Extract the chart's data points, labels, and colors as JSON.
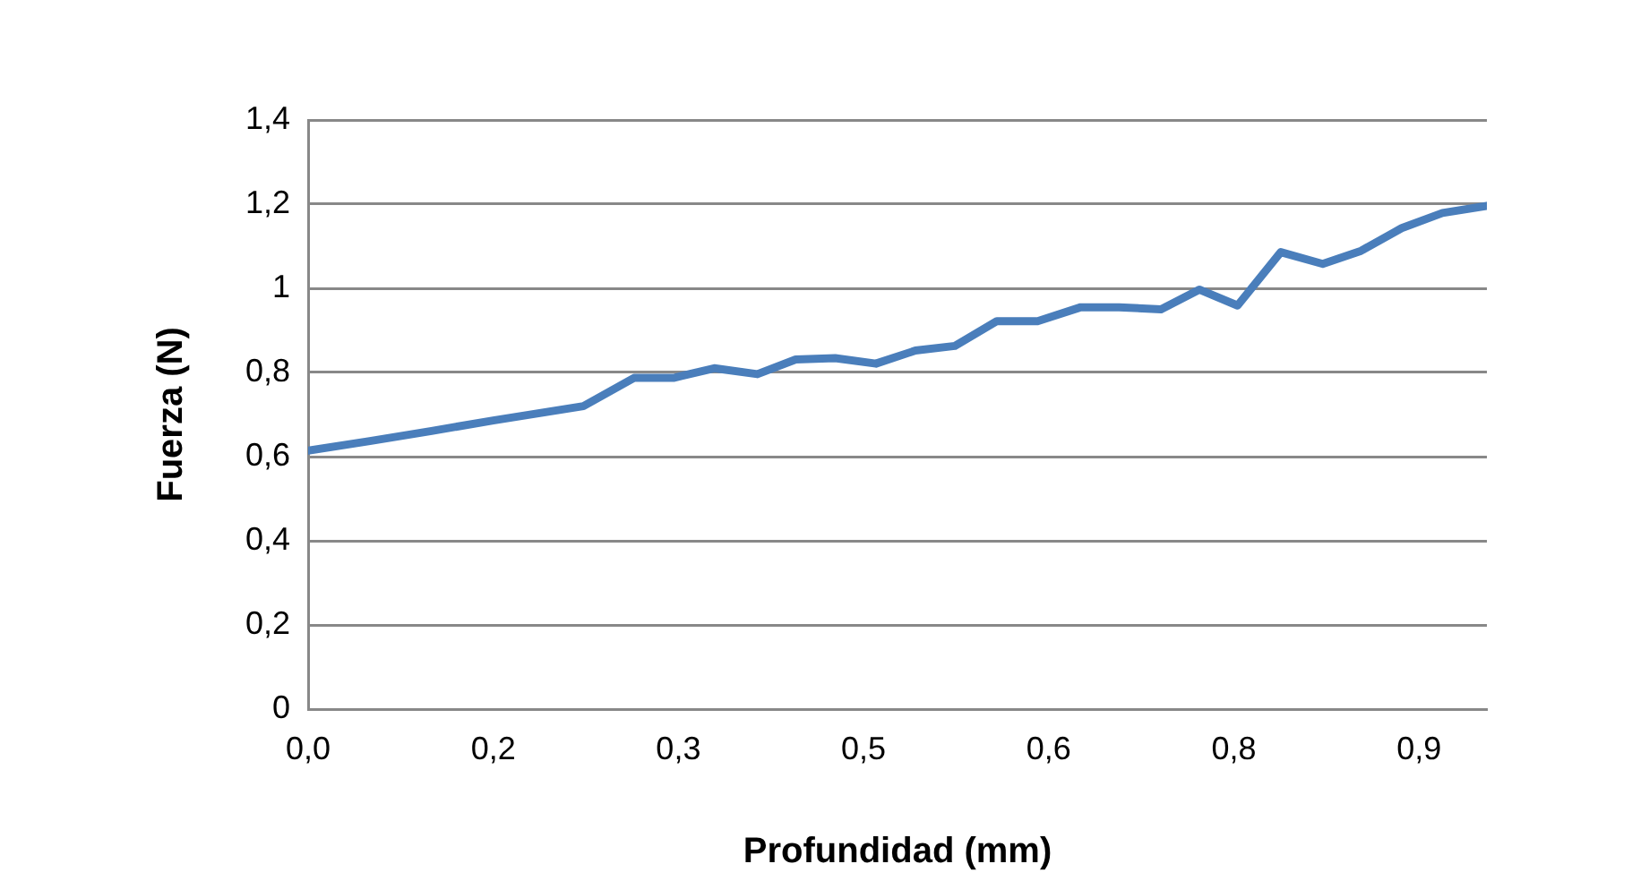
{
  "chart_data": {
    "type": "line",
    "xlabel": "Profundidad (mm)",
    "ylabel": "Fuerza (N)",
    "x": [
      0,
      0.05,
      0.1,
      0.15,
      0.223,
      0.264,
      0.296,
      0.329,
      0.364,
      0.395,
      0.427,
      0.46,
      0.492,
      0.524,
      0.558,
      0.591,
      0.626,
      0.657,
      0.691,
      0.722,
      0.753,
      0.788,
      0.822,
      0.853,
      0.886,
      0.919,
      0.955
    ],
    "series": [
      {
        "color": "#4a7ebb",
        "values": [
          0.614,
          0.637,
          0.661,
          0.686,
          0.72,
          0.787,
          0.787,
          0.81,
          0.796,
          0.831,
          0.834,
          0.821,
          0.852,
          0.863,
          0.922,
          0.922,
          0.955,
          0.955,
          0.95,
          0.997,
          0.959,
          1.086,
          1.058,
          1.089,
          1.143,
          1.179,
          1.196
        ]
      }
    ],
    "xlim": [
      0,
      0.955
    ],
    "xticks": [
      {
        "value": 0,
        "label": "0,0"
      },
      {
        "value": 0.15,
        "label": "0,2"
      },
      {
        "value": 0.3,
        "label": "0,3"
      },
      {
        "value": 0.45,
        "label": "0,5"
      },
      {
        "value": 0.6,
        "label": "0,6"
      },
      {
        "value": 0.75,
        "label": "0,8"
      },
      {
        "value": 0.9,
        "label": "0,9"
      }
    ],
    "ylim": [
      0,
      1.4
    ],
    "yticks": [
      {
        "value": 0,
        "label": "0"
      },
      {
        "value": 0.2,
        "label": "0,2"
      },
      {
        "value": 0.4,
        "label": "0,4"
      },
      {
        "value": 0.6,
        "label": "0,6"
      },
      {
        "value": 0.8,
        "label": "0,8"
      },
      {
        "value": 1,
        "label": "1"
      },
      {
        "value": 1.2,
        "label": "1,2"
      },
      {
        "value": 1.4,
        "label": "1,4"
      }
    ],
    "grid": "y",
    "legend": false,
    "marker": "none",
    "line_style": "solid"
  }
}
